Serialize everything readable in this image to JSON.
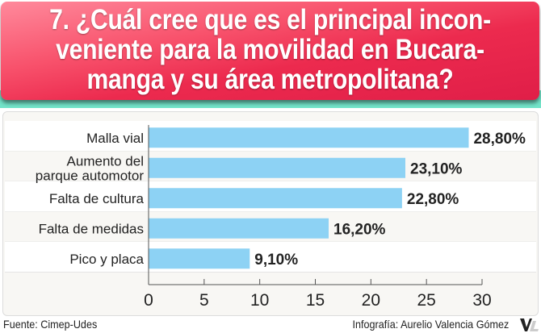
{
  "header": {
    "title_lines": [
      "7. ¿Cuál cree que es el principal incon-",
      "veniente para la movilidad en Bucara-",
      "manga y su área metropolitana?"
    ]
  },
  "chart_data": {
    "type": "bar",
    "orientation": "horizontal",
    "categories": [
      [
        "Malla vial"
      ],
      [
        "Aumento del",
        "parque automotor"
      ],
      [
        "Falta de cultura"
      ],
      [
        "Falta de medidas"
      ],
      [
        "Pico y placa"
      ]
    ],
    "values": [
      28.8,
      23.1,
      22.8,
      16.2,
      9.1
    ],
    "value_labels": [
      "28,80%",
      "23,10%",
      "22,80%",
      "16,20%",
      "9,10%"
    ],
    "xlim": [
      0,
      30
    ],
    "xticks": [
      "0",
      "5",
      "10",
      "15",
      "20",
      "25",
      "30"
    ],
    "bar_color": "#8dd2f4",
    "grid": false
  },
  "footer": {
    "source": "Fuente: Cimep-Udes",
    "credit": "Infografía: Aurelio Valencia Gómez",
    "logo": "VL"
  }
}
